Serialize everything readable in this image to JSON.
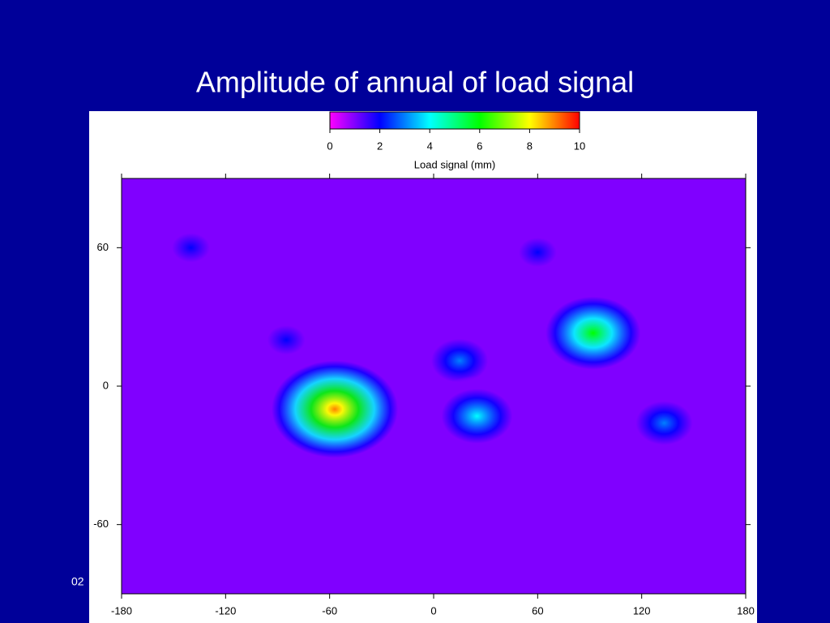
{
  "title": "Amplitude of annual of load signal",
  "footer": "02",
  "chart_data": {
    "type": "map",
    "colorbar": {
      "label": "Load signal (mm)",
      "lim": [
        0,
        10
      ],
      "ticks": [
        0,
        2,
        4,
        6,
        8,
        10
      ],
      "colors": [
        "#ff00ff",
        "#8000ff",
        "#0000ff",
        "#0080ff",
        "#00ffff",
        "#00ff80",
        "#00ff00",
        "#80ff00",
        "#ffff00",
        "#ff8000",
        "#ff0000"
      ]
    },
    "xlim": [
      -180,
      180
    ],
    "xticks": [
      -180,
      -120,
      -60,
      0,
      60,
      120,
      180
    ],
    "ylim": [
      -90,
      90
    ],
    "yticks": [
      -60,
      0,
      60
    ],
    "background_value": 0.5,
    "hotspots": [
      {
        "lon": -57,
        "lat": -10,
        "value": 9
      },
      {
        "lon": 92,
        "lat": 23,
        "value": 6
      },
      {
        "lon": 15,
        "lat": 11,
        "value": 3
      },
      {
        "lon": 25,
        "lat": -13,
        "value": 4
      },
      {
        "lon": 60,
        "lat": 58,
        "value": 2
      },
      {
        "lon": -140,
        "lat": 60,
        "value": 2
      },
      {
        "lon": 133,
        "lat": -16,
        "value": 3
      },
      {
        "lon": -85,
        "lat": 20,
        "value": 2
      }
    ]
  }
}
